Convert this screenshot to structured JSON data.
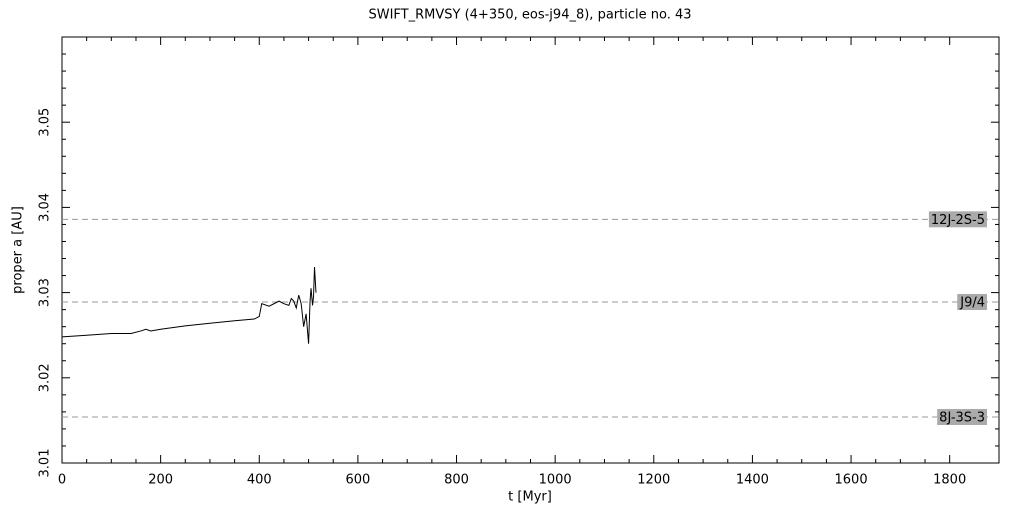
{
  "chart_data": {
    "type": "line",
    "title": "SWIFT_RMVSY (4+350, eos-j94_8), particle no. 43",
    "x_label": "t [Myr]",
    "y_label": "proper a [AU]",
    "x": [
      0,
      50,
      100,
      140,
      160,
      170,
      180,
      200,
      250,
      300,
      350,
      390,
      400,
      405,
      420,
      440,
      450,
      460,
      465,
      470,
      475,
      480,
      485,
      490,
      495,
      500,
      503,
      505,
      508,
      510,
      512,
      515
    ],
    "values": [
      3.0248,
      3.025,
      3.0252,
      3.0252,
      3.0255,
      3.0257,
      3.0255,
      3.0257,
      3.0261,
      3.0264,
      3.0267,
      3.0269,
      3.0272,
      3.0287,
      3.0284,
      3.029,
      3.0287,
      3.0285,
      3.0293,
      3.029,
      3.0282,
      3.0297,
      3.0287,
      3.026,
      3.0275,
      3.024,
      3.029,
      3.0305,
      3.0285,
      3.0295,
      3.033,
      3.03
    ],
    "color": "#000000",
    "xlim": [
      0,
      1900
    ],
    "xticks": [
      0,
      200,
      400,
      600,
      800,
      1000,
      1200,
      1400,
      1600,
      1800
    ],
    "ylim": [
      3.01,
      3.06
    ],
    "yticks": [
      3.01,
      3.02,
      3.03,
      3.04,
      3.05
    ],
    "resonances": [
      {
        "label": "12J-2S-5",
        "value": 3.0386
      },
      {
        "label": "J9/4",
        "value": 3.0289
      },
      {
        "label": "8J-3S-3",
        "value": 3.0154
      }
    ]
  }
}
